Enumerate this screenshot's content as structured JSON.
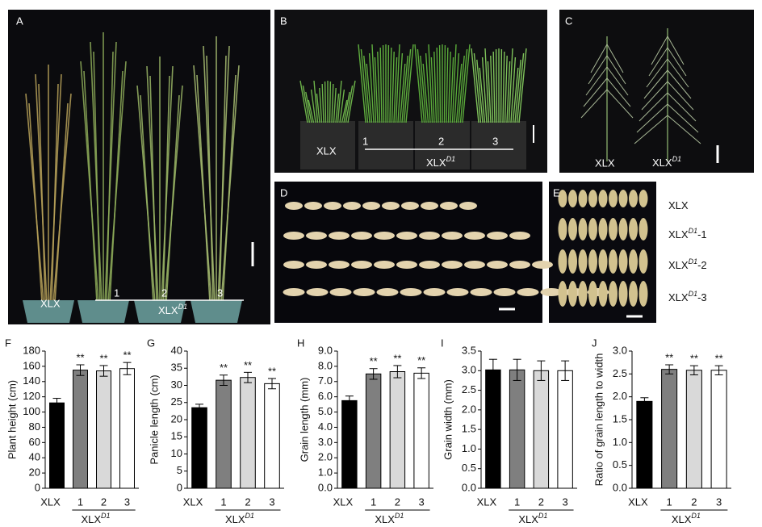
{
  "photos": [
    {
      "panel": "A",
      "labels": [
        "XLX",
        "1",
        "2",
        "3"
      ],
      "group": {
        "base": "XLX",
        "sup": "D1"
      }
    },
    {
      "panel": "B",
      "labels": [
        "XLX",
        "1",
        "2",
        "3"
      ],
      "group": {
        "base": "XLX",
        "sup": "D1"
      }
    },
    {
      "panel": "C",
      "labels": [
        "XLX"
      ],
      "group": {
        "base": "XLX",
        "sup": "D1"
      }
    },
    {
      "panel": "D"
    },
    {
      "panel": "E",
      "rows": [
        {
          "base": "XLX"
        },
        {
          "base": "XLX",
          "sup": "D1",
          "suffix": "-1"
        },
        {
          "base": "XLX",
          "sup": "D1",
          "suffix": "-2"
        },
        {
          "base": "XLX",
          "sup": "D1",
          "suffix": "-3"
        }
      ]
    }
  ],
  "chart_data": [
    {
      "type": "bar",
      "panel": "F",
      "ylabel": "Plant height (cm)",
      "categories": [
        "XLX",
        "1",
        "2",
        "3"
      ],
      "group_label": {
        "base": "XLX",
        "sup": "D1"
      },
      "values": [
        112,
        155,
        154,
        157
      ],
      "errors": [
        6,
        7,
        7,
        8
      ],
      "significance": [
        null,
        "**",
        "**",
        "**"
      ],
      "colors": [
        "#000000",
        "#7f7f7f",
        "#d9d9d9",
        "#ffffff"
      ],
      "ylim": [
        0,
        180
      ],
      "yticks": [
        0,
        20,
        40,
        60,
        80,
        100,
        120,
        140,
        160,
        180
      ]
    },
    {
      "type": "bar",
      "panel": "G",
      "ylabel": "Panicle length (cm)",
      "categories": [
        "XLX",
        "1",
        "2",
        "3"
      ],
      "group_label": {
        "base": "XLX",
        "sup": "D1"
      },
      "values": [
        23.5,
        31.5,
        32.3,
        30.5
      ],
      "errors": [
        1,
        1.5,
        1.5,
        1.5
      ],
      "significance": [
        null,
        "**",
        "**",
        "**"
      ],
      "colors": [
        "#000000",
        "#7f7f7f",
        "#d9d9d9",
        "#ffffff"
      ],
      "ylim": [
        0,
        40
      ],
      "yticks": [
        0,
        5,
        10,
        15,
        20,
        25,
        30,
        35,
        40
      ]
    },
    {
      "type": "bar",
      "panel": "H",
      "ylabel": "Grain length (mm)",
      "categories": [
        "XLX",
        "1",
        "2",
        "3"
      ],
      "group_label": {
        "base": "XLX",
        "sup": "D1"
      },
      "values": [
        5.75,
        7.5,
        7.65,
        7.55
      ],
      "errors": [
        0.3,
        0.35,
        0.4,
        0.35
      ],
      "significance": [
        null,
        "**",
        "**",
        "**"
      ],
      "colors": [
        "#000000",
        "#7f7f7f",
        "#d9d9d9",
        "#ffffff"
      ],
      "ylim": [
        0,
        9
      ],
      "yticks": [
        {
          "value": 0,
          "label": "0.0"
        },
        {
          "value": 1,
          "label": "1.0"
        },
        {
          "value": 2,
          "label": "2.0"
        },
        {
          "value": 3,
          "label": "3.0"
        },
        {
          "value": 4,
          "label": "4.0"
        },
        {
          "value": 5,
          "label": "5.0"
        },
        {
          "value": 6,
          "label": "6.0"
        },
        {
          "value": 7,
          "label": "7.0"
        },
        {
          "value": 8,
          "label": "8.0"
        },
        {
          "value": 9,
          "label": "9.0"
        }
      ]
    },
    {
      "type": "bar",
      "panel": "I",
      "ylabel": "Grain width (mm)",
      "categories": [
        "XLX",
        "1",
        "2",
        "3"
      ],
      "group_label": {
        "base": "XLX",
        "sup": "D1"
      },
      "values": [
        3.02,
        3.02,
        3.0,
        3.0
      ],
      "errors": [
        0.27,
        0.27,
        0.25,
        0.25
      ],
      "colors": [
        "#000000",
        "#7f7f7f",
        "#d9d9d9",
        "#ffffff"
      ],
      "ylim": [
        0,
        3.5
      ],
      "yticks": [
        {
          "value": 0,
          "label": "0.0"
        },
        0.5,
        {
          "value": 1,
          "label": "1.0"
        },
        1.5,
        {
          "value": 2,
          "label": "2.0"
        },
        2.5,
        {
          "value": 3,
          "label": "3.0"
        },
        3.5
      ]
    },
    {
      "type": "bar",
      "panel": "J",
      "ylabel": "Ratio of grain length to width",
      "categories": [
        "XLX",
        "1",
        "2",
        "3"
      ],
      "group_label": {
        "base": "XLX",
        "sup": "D1"
      },
      "values": [
        1.9,
        2.6,
        2.58,
        2.58
      ],
      "errors": [
        0.08,
        0.1,
        0.1,
        0.1
      ],
      "significance": [
        null,
        "**",
        "**",
        "**"
      ],
      "colors": [
        "#000000",
        "#7f7f7f",
        "#d9d9d9",
        "#ffffff"
      ],
      "ylim": [
        0,
        3
      ],
      "yticks": [
        {
          "value": 0,
          "label": "0.0"
        },
        0.5,
        {
          "value": 1,
          "label": "1.0"
        },
        1.5,
        {
          "value": 2,
          "label": "2.0"
        },
        2.5,
        {
          "value": 3,
          "label": "3.0"
        }
      ]
    }
  ]
}
